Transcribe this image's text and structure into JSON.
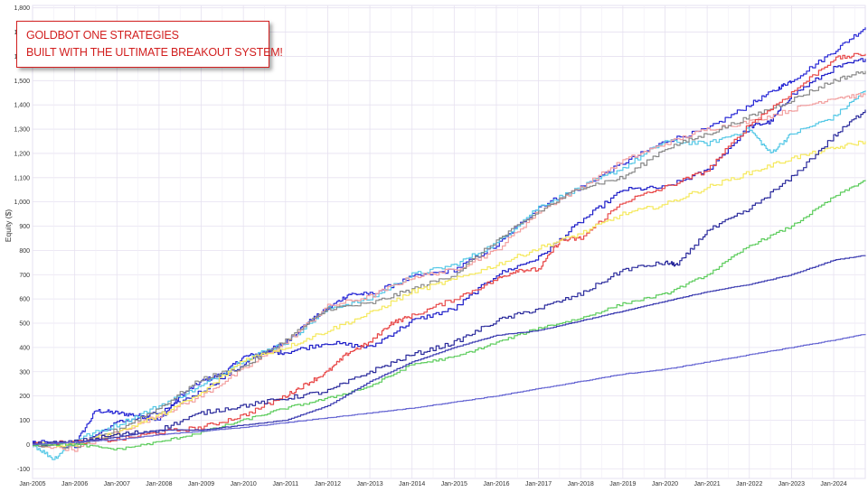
{
  "banner": {
    "line1": "GOLDBOT ONE STRATEGIES",
    "line2": "BUILT WITH THE ULTIMATE BREAKOUT SYSTEM!"
  },
  "colors": {
    "banner_text": "#d21f1f",
    "grid": "#e6e1f0",
    "axis": "#555555"
  },
  "chart_data": {
    "type": "line",
    "title": "",
    "xlabel": "",
    "ylabel": "Equity ($)",
    "xlim": [
      2005.0,
      2024.75
    ],
    "ylim": [
      -140,
      1810
    ],
    "grid": true,
    "legend": "none",
    "x_ticks": [
      {
        "label": "Jan-2005",
        "x": 2005
      },
      {
        "label": "Jan-2006",
        "x": 2006
      },
      {
        "label": "Jan-2007",
        "x": 2007
      },
      {
        "label": "Jan-2008",
        "x": 2008
      },
      {
        "label": "Jan-2009",
        "x": 2009
      },
      {
        "label": "Jan-2010",
        "x": 2010
      },
      {
        "label": "Jan-2011",
        "x": 2011
      },
      {
        "label": "Jan-2012",
        "x": 2012
      },
      {
        "label": "Jan-2013",
        "x": 2013
      },
      {
        "label": "Jan-2014",
        "x": 2014
      },
      {
        "label": "Jan-2015",
        "x": 2015
      },
      {
        "label": "Jan-2016",
        "x": 2016
      },
      {
        "label": "Jan-2017",
        "x": 2017
      },
      {
        "label": "Jan-2018",
        "x": 2018
      },
      {
        "label": "Jan-2019",
        "x": 2019
      },
      {
        "label": "Jan-2020",
        "x": 2020
      },
      {
        "label": "Jan-2021",
        "x": 2021
      },
      {
        "label": "Jan-2022",
        "x": 2022
      },
      {
        "label": "Jan-2023",
        "x": 2023
      },
      {
        "label": "Jan-2024",
        "x": 2024
      }
    ],
    "y_ticks": [
      {
        "label": "-100",
        "y": -100
      },
      {
        "label": "0",
        "y": 0
      },
      {
        "label": "100",
        "y": 100
      },
      {
        "label": "200",
        "y": 200
      },
      {
        "label": "300",
        "y": 300
      },
      {
        "label": "400",
        "y": 400
      },
      {
        "label": "500",
        "y": 500
      },
      {
        "label": "600",
        "y": 600
      },
      {
        "label": "700",
        "y": 700
      },
      {
        "label": "800",
        "y": 800
      },
      {
        "label": "900",
        "y": 900
      },
      {
        "label": "1,000",
        "y": 1000
      },
      {
        "label": "1,100",
        "y": 1100
      },
      {
        "label": "1,200",
        "y": 1200
      },
      {
        "label": "1,300",
        "y": 1300
      },
      {
        "label": "1,400",
        "y": 1400
      },
      {
        "label": "1,500",
        "y": 1500
      },
      {
        "label": "1,600",
        "y": 1600
      },
      {
        "label": "1,700",
        "y": 1700
      },
      {
        "label": "1,800",
        "y": 1800
      }
    ],
    "series": [
      {
        "color": "#2a2ad6",
        "x": [
          2005,
          2006,
          2006.5,
          2007,
          2007.5,
          2008,
          2008.5,
          2009,
          2009.5,
          2010,
          2010.5,
          2011,
          2011.5,
          2012,
          2012.5,
          2013,
          2014,
          2015,
          2016,
          2017,
          2018,
          2019,
          2020,
          2021,
          2022,
          2022.7,
          2023,
          2024,
          2024.75
        ],
        "y": [
          10,
          0,
          140,
          130,
          120,
          100,
          200,
          260,
          290,
          360,
          380,
          420,
          500,
          560,
          620,
          620,
          690,
          720,
          820,
          980,
          1060,
          1160,
          1250,
          1300,
          1400,
          1470,
          1500,
          1620,
          1720
        ]
      },
      {
        "color": "#1e1ec8",
        "x": [
          2005,
          2006,
          2007,
          2008,
          2009,
          2010,
          2010.5,
          2011,
          2012,
          2013,
          2014,
          2015,
          2016,
          2017,
          2018,
          2019,
          2020,
          2021,
          2022,
          2022.5,
          2023,
          2024,
          2024.75
        ],
        "y": [
          10,
          -10,
          90,
          130,
          220,
          330,
          380,
          380,
          420,
          400,
          510,
          560,
          700,
          770,
          920,
          1050,
          1060,
          1130,
          1310,
          1330,
          1440,
          1550,
          1590
        ]
      },
      {
        "color": "#55c8e6",
        "x": [
          2005,
          2005.5,
          2006,
          2007,
          2008,
          2009,
          2010,
          2011,
          2012,
          2013,
          2014,
          2015,
          2016,
          2017,
          2018,
          2019,
          2020,
          2021,
          2022,
          2022.5,
          2023,
          2024,
          2024.75
        ],
        "y": [
          0,
          -60,
          20,
          80,
          160,
          240,
          350,
          420,
          560,
          600,
          700,
          740,
          830,
          980,
          1060,
          1140,
          1250,
          1240,
          1300,
          1200,
          1280,
          1350,
          1460
        ]
      },
      {
        "color": "#f2a0a0",
        "x": [
          2005,
          2006,
          2007,
          2008,
          2009,
          2010,
          2011,
          2012,
          2013,
          2014,
          2015,
          2016,
          2017,
          2018,
          2019,
          2020,
          2021,
          2022,
          2023,
          2024,
          2024.75
        ],
        "y": [
          0,
          -20,
          50,
          120,
          200,
          310,
          420,
          570,
          610,
          690,
          720,
          800,
          960,
          1060,
          1170,
          1240,
          1300,
          1330,
          1380,
          1430,
          1440
        ]
      },
      {
        "color": "#888888",
        "x": [
          2005,
          2006,
          2007,
          2008,
          2009,
          2010,
          2011,
          2012,
          2013,
          2014,
          2015,
          2016,
          2017,
          2018,
          2019,
          2020,
          2021,
          2022,
          2023,
          2024,
          2024.75
        ],
        "y": [
          0,
          -10,
          60,
          150,
          270,
          320,
          430,
          560,
          580,
          640,
          700,
          840,
          960,
          1060,
          1100,
          1220,
          1280,
          1350,
          1420,
          1500,
          1540
        ]
      },
      {
        "color": "#e84848",
        "x": [
          2005,
          2006,
          2007,
          2008,
          2009,
          2010,
          2011,
          2011.5,
          2012,
          2012.5,
          2013,
          2013.5,
          2014,
          2015,
          2016,
          2016.5,
          2017,
          2017.5,
          2018,
          2019,
          2020,
          2021,
          2022,
          2023,
          2024,
          2024.75
        ],
        "y": [
          0,
          10,
          20,
          50,
          70,
          120,
          200,
          250,
          300,
          380,
          420,
          500,
          530,
          600,
          680,
          720,
          720,
          840,
          850,
          1000,
          1060,
          1130,
          1320,
          1450,
          1590,
          1610
        ]
      },
      {
        "color": "#f5e95e",
        "x": [
          2005,
          2006,
          2007,
          2008,
          2009,
          2010,
          2011,
          2012,
          2013,
          2014,
          2015,
          2016,
          2017,
          2018,
          2019,
          2020,
          2021,
          2022,
          2023,
          2024,
          2024.75
        ],
        "y": [
          0,
          0,
          50,
          120,
          210,
          350,
          400,
          470,
          540,
          630,
          680,
          740,
          810,
          870,
          950,
          990,
          1060,
          1120,
          1180,
          1220,
          1250
        ]
      },
      {
        "color": "#2a2a9c",
        "x": [
          2005,
          2006,
          2007,
          2008,
          2009,
          2010,
          2011,
          2012,
          2013,
          2014,
          2015,
          2016,
          2017,
          2018,
          2019,
          2020,
          2020.3,
          2021,
          2022,
          2023,
          2024,
          2024.75
        ],
        "y": [
          0,
          10,
          40,
          60,
          130,
          160,
          190,
          220,
          300,
          370,
          420,
          510,
          560,
          620,
          720,
          750,
          740,
          880,
          970,
          1100,
          1270,
          1380
        ]
      },
      {
        "color": "#5ccc5c",
        "x": [
          2005,
          2006,
          2007,
          2008,
          2009,
          2010,
          2011,
          2012,
          2013,
          2014,
          2015,
          2016,
          2017,
          2018,
          2019,
          2020,
          2021,
          2022,
          2023,
          2024,
          2024.75
        ],
        "y": [
          0,
          0,
          -20,
          10,
          50,
          100,
          150,
          190,
          240,
          330,
          360,
          420,
          480,
          520,
          580,
          620,
          700,
          820,
          900,
          1020,
          1090
        ]
      },
      {
        "color": "#3a3ab0",
        "x": [
          2005,
          2006,
          2007,
          2008,
          2009,
          2010,
          2011,
          2012,
          2013,
          2014,
          2015,
          2016,
          2017,
          2018,
          2019,
          2020,
          2021,
          2022,
          2023,
          2024,
          2024.75
        ],
        "y": [
          0,
          10,
          30,
          60,
          60,
          80,
          100,
          160,
          260,
          340,
          400,
          450,
          470,
          510,
          550,
          590,
          630,
          660,
          700,
          760,
          780
        ]
      },
      {
        "color": "#6464d2",
        "x": [
          2005,
          2006,
          2007,
          2008,
          2009,
          2010,
          2011,
          2012,
          2013,
          2014,
          2015,
          2016,
          2017,
          2018,
          2019,
          2020,
          2021,
          2022,
          2023,
          2024,
          2024.75
        ],
        "y": [
          0,
          10,
          20,
          40,
          55,
          70,
          90,
          110,
          130,
          150,
          175,
          200,
          230,
          260,
          290,
          310,
          340,
          370,
          400,
          430,
          455
        ]
      }
    ]
  }
}
